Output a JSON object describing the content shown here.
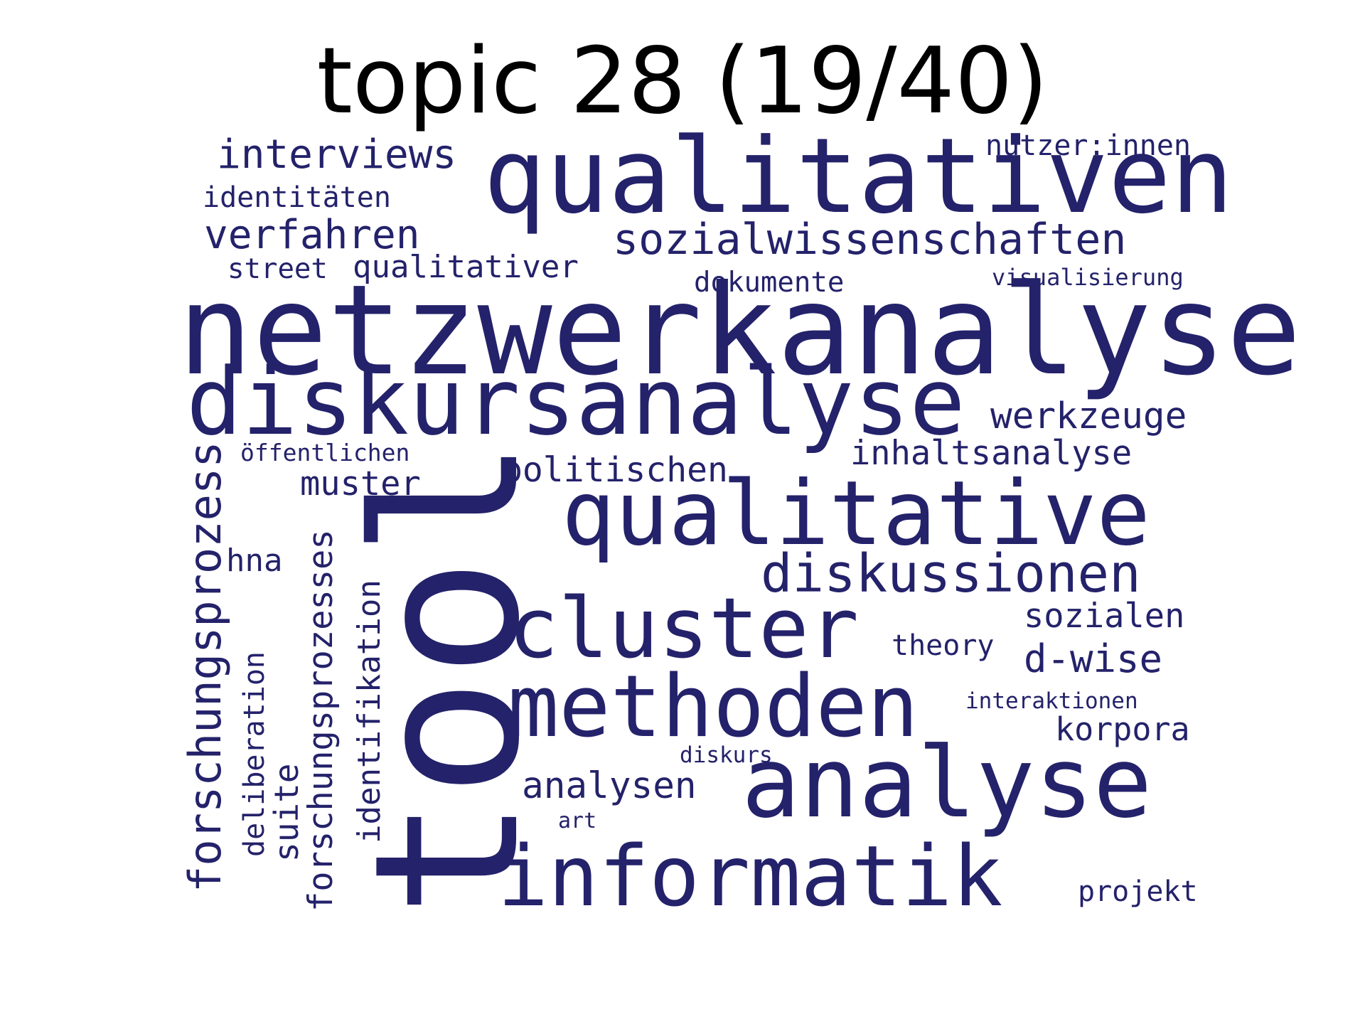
{
  "title": "topic 28 (19/40)",
  "color": "#24226a",
  "words": [
    {
      "text": "netzwerkanalyse"
    },
    {
      "text": "qualitativen"
    },
    {
      "text": "diskursanalyse"
    },
    {
      "text": "tool"
    },
    {
      "text": "qualitative"
    },
    {
      "text": "analyse"
    },
    {
      "text": "cluster"
    },
    {
      "text": "methoden"
    },
    {
      "text": "informatik"
    },
    {
      "text": "diskussionen"
    },
    {
      "text": "sozialwissenschaften"
    },
    {
      "text": "interviews"
    },
    {
      "text": "verfahren"
    },
    {
      "text": "werkzeuge"
    },
    {
      "text": "forschungsprozess"
    },
    {
      "text": "politischen"
    },
    {
      "text": "forschungsprozesses"
    },
    {
      "text": "inhaltsanalyse"
    },
    {
      "text": "muster"
    },
    {
      "text": "qualitativer"
    },
    {
      "text": "d-wise"
    },
    {
      "text": "analysen"
    },
    {
      "text": "sozialen"
    },
    {
      "text": "identifikation"
    },
    {
      "text": "korpora"
    },
    {
      "text": "nutzer:innen"
    },
    {
      "text": "identitäten"
    },
    {
      "text": "hna"
    },
    {
      "text": "deliberation"
    },
    {
      "text": "suite"
    },
    {
      "text": "dokumente"
    },
    {
      "text": "street"
    },
    {
      "text": "theory"
    },
    {
      "text": "projekt"
    },
    {
      "text": "öffentlichen"
    },
    {
      "text": "visualisierung"
    },
    {
      "text": "interaktionen"
    },
    {
      "text": "diskurs"
    },
    {
      "text": "art"
    }
  ]
}
